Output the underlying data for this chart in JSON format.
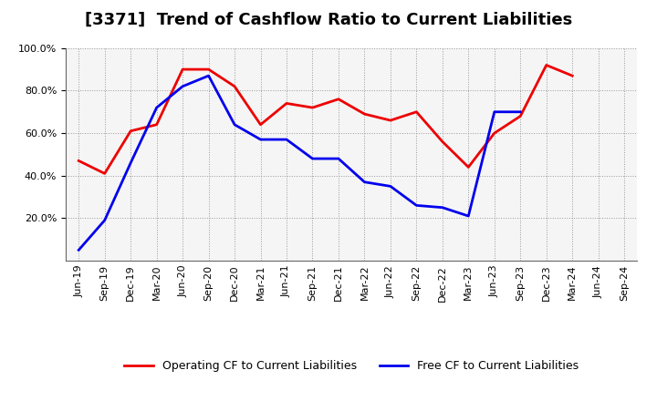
{
  "title": "[3371]  Trend of Cashflow Ratio to Current Liabilities",
  "labels": [
    "Jun-19",
    "Sep-19",
    "Dec-19",
    "Mar-20",
    "Jun-20",
    "Sep-20",
    "Dec-20",
    "Mar-21",
    "Jun-21",
    "Sep-21",
    "Dec-21",
    "Mar-22",
    "Jun-22",
    "Sep-22",
    "Dec-22",
    "Mar-23",
    "Jun-23",
    "Sep-23",
    "Dec-23",
    "Mar-24",
    "Jun-24",
    "Sep-24"
  ],
  "operating_cf": [
    0.47,
    0.41,
    0.61,
    0.64,
    0.9,
    0.9,
    0.82,
    0.64,
    0.74,
    0.72,
    0.76,
    0.69,
    0.66,
    0.7,
    0.56,
    0.44,
    0.6,
    0.68,
    0.92,
    0.87,
    null,
    null
  ],
  "free_cf": [
    0.05,
    0.19,
    0.46,
    0.72,
    0.82,
    0.87,
    0.64,
    0.57,
    0.57,
    0.48,
    0.48,
    0.37,
    0.35,
    0.26,
    0.25,
    0.21,
    0.7,
    0.7,
    null,
    null,
    null,
    null
  ],
  "operating_color": "#ee0000",
  "free_color": "#0000ee",
  "ylim_min": 0.0,
  "ylim_max": 1.0,
  "ytick_values": [
    0.2,
    0.4,
    0.6,
    0.8,
    1.0
  ],
  "background_color": "#ffffff",
  "plot_bg_color": "#f5f5f5",
  "grid_color": "#999999",
  "title_fontsize": 13,
  "tick_fontsize": 8,
  "legend_fontsize": 9,
  "linewidth": 2.0
}
